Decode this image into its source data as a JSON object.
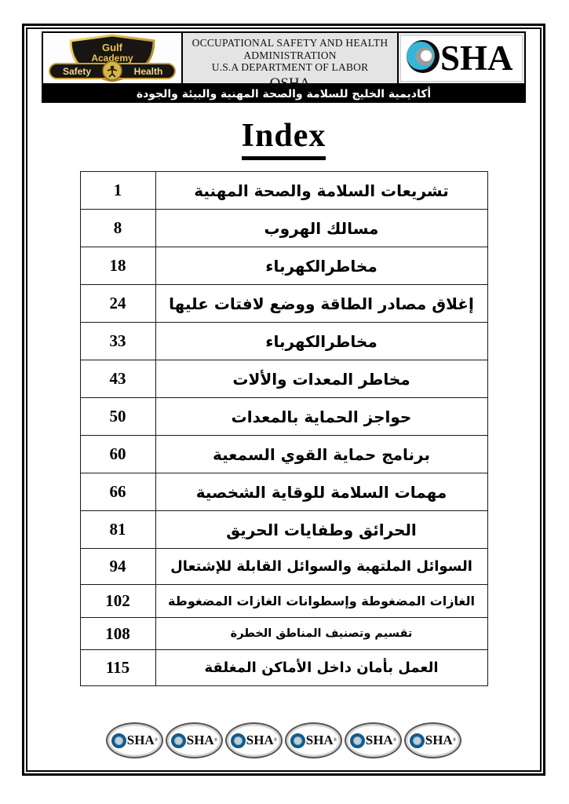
{
  "header": {
    "academy_logo": {
      "name_line1": "Gulf",
      "name_line2": "Academy",
      "banner_left": "Safety",
      "banner_right": "Health"
    },
    "agency_block": {
      "line1": "OCCUPATIONAL SAFETY AND HEALTH",
      "line2": "ADMINISTRATION",
      "line3": "U.S.A DEPARTMENT OF LABOR",
      "abbrev": "OSHA"
    },
    "osha_logo": {
      "initial": "O",
      "rest": "SHA"
    },
    "banner_arabic": "أكاديمية الخليج للسلامة والصحة المهنية والبيئة والجودة"
  },
  "title": "Index",
  "index_table": {
    "rows": [
      {
        "page": "1",
        "title": "تشريعات السلامة والصحة المهنية",
        "size": "lg"
      },
      {
        "page": "8",
        "title": "مسالك الهروب",
        "size": "lg"
      },
      {
        "page": "18",
        "title": "مخاطرالكهرباء",
        "size": "lg"
      },
      {
        "page": "24",
        "title": "إغلاق مصادر الطاقة ووضع لافتات عليها",
        "size": "lg"
      },
      {
        "page": "33",
        "title": "مخاطرالكهرباء",
        "size": "lg"
      },
      {
        "page": "43",
        "title": "مخاطر المعدات والألات",
        "size": "lg"
      },
      {
        "page": "50",
        "title": "حواجز الحماية بالمعدات",
        "size": "lg"
      },
      {
        "page": "60",
        "title": "برنامج حماية القوي السمعية",
        "size": "lg"
      },
      {
        "page": "66",
        "title": "مهمات السلامة للوقاية الشخصية",
        "size": "lg"
      },
      {
        "page": "81",
        "title": "الحرائق وطفايات الحريق",
        "size": "lg"
      },
      {
        "page": "94",
        "title": "السوائل الملتهبة والسوائل القابلة للإشتعال",
        "size": "md"
      },
      {
        "page": "102",
        "title": "الغازات المضغوطة وإسطوانات الغازات المضغوطة",
        "size": "sm"
      },
      {
        "page": "108",
        "title": "تقسيم وتصنيف المناطق الخطرة",
        "size": "xs"
      },
      {
        "page": "115",
        "title": "العمل بأمان داخل الأماكن المغلقة",
        "size": "md"
      }
    ]
  },
  "footer": {
    "logo_count": 6,
    "logo_initial": "O",
    "logo_rest": "SHA",
    "registered_mark": "®"
  },
  "colors": {
    "banner_bg": "#000000",
    "banner_text": "#ffffff",
    "header_center_bg": "#e4e4e4",
    "academy_gold": "#d8b54a",
    "osha_cyan": "#35b6d9",
    "table_border": "#1a1a1a"
  }
}
